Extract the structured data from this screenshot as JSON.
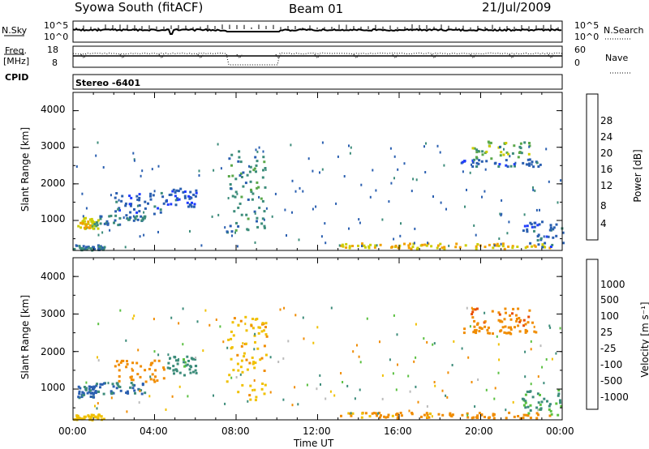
{
  "header": {
    "station": "Syowa South (fitACF)",
    "beam": "Beam 01",
    "date": "21/Jul/2009"
  },
  "strip1": {
    "left_label": "N.Sky",
    "left_ticks": [
      "10^5",
      "10^0"
    ],
    "right_label": "N.Search",
    "right_ticks": [
      "10^5",
      "10^0"
    ]
  },
  "strip2": {
    "left_label_1": "Freq.",
    "left_label_2": "[MHz]",
    "left_ticks": [
      "18",
      "8"
    ],
    "right_label": "Nave",
    "right_ticks": [
      "60",
      "0"
    ]
  },
  "cpid": {
    "label": "CPID",
    "value": "Stereo -6401"
  },
  "x_axis": {
    "label": "Time UT",
    "ticks": [
      "00:00",
      "04:00",
      "08:00",
      "12:00",
      "16:00",
      "20:00",
      "00:00"
    ]
  },
  "y_ticks": [
    "1000",
    "2000",
    "3000",
    "4000"
  ],
  "colorbar_power": {
    "label": "Power [dB]",
    "ticks": [
      "4",
      "8",
      "12",
      "16",
      "20",
      "24",
      "28"
    ],
    "colors": [
      "#1f3cff",
      "#2a5fb0",
      "#3c8c7a",
      "#5aa84a",
      "#cccc00",
      "#f0a000",
      "#f07800",
      "#e83c00",
      "#d80000"
    ]
  },
  "colorbar_velocity": {
    "label": "Velocity  [m s⁻¹]",
    "ticks": [
      "1000",
      "500",
      "100",
      "25",
      "-25",
      "-100",
      "-500",
      "-1000"
    ],
    "colors": [
      "#1f3cff",
      "#2a5fb0",
      "#3c8c7a",
      "#5ac040",
      "#bbbbbb",
      "#f0c000",
      "#f08c00",
      "#e84c00",
      "#d80000"
    ]
  },
  "chart_data": [
    {
      "type": "heatmap",
      "title": "Power",
      "ylabel": "Slant Range [km]",
      "xlabel": "",
      "xlim": [
        0,
        24
      ],
      "ylim": [
        180,
        4500
      ],
      "colorbar": "Power [dB]",
      "regions": [
        {
          "t": [
            0.0,
            1.5
          ],
          "r": [
            200,
            350
          ],
          "v": 8
        },
        {
          "t": [
            0.2,
            1.2
          ],
          "r": [
            800,
            1100
          ],
          "v": 18
        },
        {
          "t": [
            1.0,
            3.5
          ],
          "r": [
            900,
            1200
          ],
          "v": 8
        },
        {
          "t": [
            2.0,
            4.5
          ],
          "r": [
            1200,
            1800
          ],
          "v": 6
        },
        {
          "t": [
            4.5,
            6.0
          ],
          "r": [
            1400,
            1900
          ],
          "v": 5
        },
        {
          "t": [
            7.5,
            9.5
          ],
          "r": [
            700,
            3000
          ],
          "v": 10
        },
        {
          "t": [
            13.0,
            17.5
          ],
          "r": [
            250,
            400
          ],
          "v": 20
        },
        {
          "t": [
            17.5,
            23.5
          ],
          "r": [
            250,
            400
          ],
          "v": 20
        },
        {
          "t": [
            19.5,
            22.5
          ],
          "r": [
            2700,
            3200
          ],
          "v": 14
        },
        {
          "t": [
            19.0,
            23.0
          ],
          "r": [
            2500,
            2700
          ],
          "v": 6
        },
        {
          "t": [
            22.0,
            24.0
          ],
          "r": [
            300,
            1000
          ],
          "v": 6
        }
      ]
    },
    {
      "type": "heatmap",
      "title": "Velocity",
      "ylabel": "Slant Range [km]",
      "xlabel": "Time UT",
      "xlim": [
        0,
        24
      ],
      "ylim": [
        180,
        4500
      ],
      "colorbar": "Velocity [m s^-1]",
      "regions": [
        {
          "t": [
            0.0,
            1.5
          ],
          "r": [
            200,
            350
          ],
          "v": -60
        },
        {
          "t": [
            0.2,
            1.2
          ],
          "r": [
            800,
            1100
          ],
          "v": 600
        },
        {
          "t": [
            1.0,
            3.5
          ],
          "r": [
            900,
            1200
          ],
          "v": 500
        },
        {
          "t": [
            2.0,
            4.5
          ],
          "r": [
            1200,
            1800
          ],
          "v": -200
        },
        {
          "t": [
            4.5,
            6.0
          ],
          "r": [
            1400,
            1900
          ],
          "v": 150
        },
        {
          "t": [
            7.5,
            9.5
          ],
          "r": [
            700,
            3000
          ],
          "v": -80
        },
        {
          "t": [
            13.0,
            17.5
          ],
          "r": [
            250,
            400
          ],
          "v": -120
        },
        {
          "t": [
            17.5,
            23.5
          ],
          "r": [
            250,
            400
          ],
          "v": -200
        },
        {
          "t": [
            19.5,
            22.5
          ],
          "r": [
            2700,
            3200
          ],
          "v": -400
        },
        {
          "t": [
            19.0,
            23.0
          ],
          "r": [
            2500,
            2700
          ],
          "v": -300
        },
        {
          "t": [
            22.0,
            24.0
          ],
          "r": [
            300,
            1000
          ],
          "v": 100
        }
      ]
    }
  ]
}
